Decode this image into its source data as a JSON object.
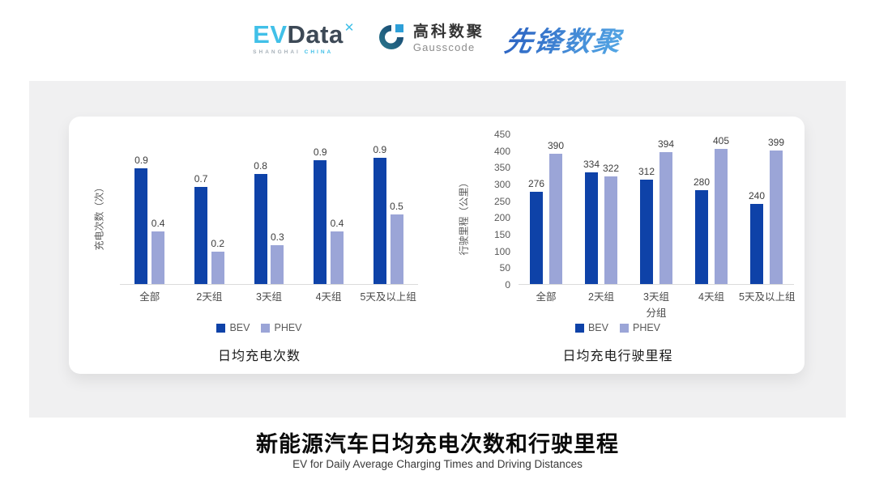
{
  "header": {
    "logos": {
      "evdata": {
        "ev": "EV",
        "data": "Data",
        "mark": "✕",
        "sub_left": "SHANGHAI",
        "sub_right": "CHINA",
        "accent_color": "#41C0E8",
        "dark_color": "#3D4956"
      },
      "gausscode": {
        "cn": "高科数聚",
        "en": "Gausscode",
        "mark_color": "#14406E",
        "square_color": "#2D9FD8"
      },
      "pioneer": {
        "text": "先锋数聚",
        "color": "#3173D1"
      }
    }
  },
  "chart_data": [
    {
      "type": "bar",
      "title": "日均充电次数",
      "ylabel": "充电次数（次）",
      "xlabel": "",
      "categories": [
        "全部",
        "2天组",
        "3天组",
        "4天组",
        "5天及以上组"
      ],
      "series": [
        {
          "name": "BEV",
          "color": "#0E42A8",
          "values": [
            0.9,
            0.7,
            0.8,
            0.9,
            0.9
          ],
          "labels": [
            "0.9",
            "0.7",
            "0.8",
            "0.9",
            "0.9"
          ],
          "draw_values": [
            0.86,
            0.72,
            0.82,
            0.92,
            0.94
          ]
        },
        {
          "name": "PHEV",
          "color": "#9BA5D7",
          "values": [
            0.4,
            0.2,
            0.3,
            0.4,
            0.5
          ],
          "labels": [
            "0.4",
            "0.2",
            "0.3",
            "0.4",
            "0.5"
          ],
          "draw_values": [
            0.39,
            0.24,
            0.29,
            0.39,
            0.52
          ]
        }
      ],
      "ylim": [
        0,
        1.12
      ],
      "yticks": [],
      "grid": false,
      "data_labels": true,
      "legend_position": "bottom"
    },
    {
      "type": "bar",
      "title": "日均充电行驶里程",
      "ylabel": "行驶里程（公里）",
      "xlabel": "分组",
      "categories": [
        "全部",
        "2天组",
        "3天组",
        "4天组",
        "5天及以上组"
      ],
      "series": [
        {
          "name": "BEV",
          "color": "#0E42A8",
          "values": [
            276,
            334,
            312,
            280,
            240
          ],
          "labels": [
            "276",
            "334",
            "312",
            "280",
            "240"
          ]
        },
        {
          "name": "PHEV",
          "color": "#9BA5D7",
          "values": [
            390,
            322,
            394,
            405,
            399
          ],
          "labels": [
            "390",
            "322",
            "394",
            "405",
            "399"
          ]
        }
      ],
      "ylim": [
        0,
        450
      ],
      "yticks": [
        0,
        50,
        100,
        150,
        200,
        250,
        300,
        350,
        400,
        450
      ],
      "grid": false,
      "data_labels": true,
      "legend_position": "bottom"
    }
  ],
  "footer": {
    "title": "新能源汽车日均充电次数和行驶里程",
    "subtitle": "EV for Daily Average Charging Times and Driving Distances"
  }
}
